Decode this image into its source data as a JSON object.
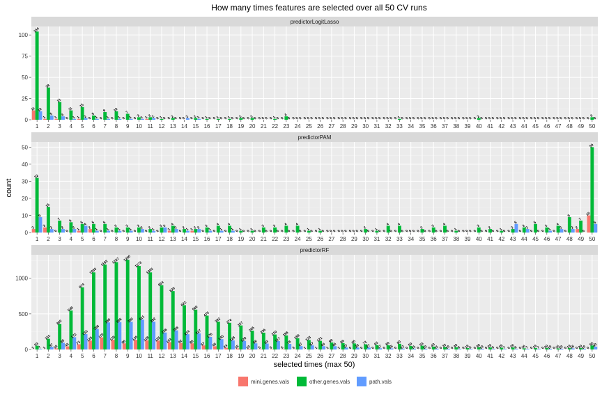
{
  "chart_data": {
    "type": "bar",
    "title": "How many times features are selected over all 50 CV runs",
    "xlabel": "selected times (max 50)",
    "ylabel": "count",
    "x": [
      1,
      2,
      3,
      4,
      5,
      6,
      7,
      8,
      9,
      10,
      11,
      12,
      13,
      14,
      15,
      16,
      17,
      18,
      19,
      20,
      21,
      22,
      23,
      24,
      25,
      26,
      27,
      28,
      29,
      30,
      31,
      32,
      33,
      34,
      35,
      36,
      37,
      38,
      39,
      40,
      41,
      42,
      43,
      44,
      45,
      46,
      47,
      48,
      49,
      50
    ],
    "legend_position": "bottom",
    "colors": {
      "mini.genes.vals": "#F8766D",
      "other.genes.vals": "#00BA38",
      "path.vals": "#619CFF"
    },
    "panels": [
      {
        "name": "predictorLogitLasso",
        "ylim": [
          0,
          110
        ],
        "yticks": [
          0,
          25,
          50,
          75,
          100
        ],
        "series": [
          {
            "name": "mini.genes.vals",
            "values": [
              11,
              1,
              1,
              0,
              1,
              0,
              0,
              0,
              0,
              0,
              1,
              0,
              0,
              0,
              0,
              0,
              0,
              0,
              0,
              0,
              0,
              0,
              0,
              0,
              0,
              0,
              0,
              0,
              0,
              0,
              0,
              0,
              0,
              0,
              0,
              0,
              0,
              0,
              0,
              0,
              0,
              0,
              0,
              0,
              0,
              0,
              0,
              0,
              0,
              0
            ]
          },
          {
            "name": "other.genes.vals",
            "values": [
              104,
              38,
              21,
              11,
              15,
              5,
              9,
              10,
              7,
              3,
              3,
              1,
              2,
              0,
              2,
              1,
              1,
              1,
              2,
              2,
              0,
              1,
              4,
              0,
              0,
              0,
              0,
              0,
              0,
              0,
              0,
              0,
              1,
              0,
              0,
              0,
              0,
              0,
              0,
              2,
              0,
              0,
              0,
              0,
              0,
              0,
              0,
              0,
              0,
              3
            ]
          },
          {
            "name": "path.vals",
            "values": [
              10,
              5,
              4,
              1,
              2,
              1,
              1,
              1,
              1,
              1,
              2,
              0,
              0,
              2,
              1,
              0,
              0,
              0,
              0,
              0,
              0,
              0,
              0,
              0,
              0,
              0,
              0,
              0,
              0,
              0,
              0,
              0,
              0,
              0,
              0,
              0,
              0,
              0,
              0,
              0,
              0,
              0,
              0,
              0,
              0,
              0,
              0,
              0,
              0,
              0
            ]
          }
        ]
      },
      {
        "name": "predictorPAM",
        "ylim": [
          0,
          53
        ],
        "yticks": [
          0,
          10,
          20,
          30,
          40,
          50
        ],
        "series": [
          {
            "name": "mini.genes.vals",
            "values": [
              2,
              3,
              0,
              0,
              1,
              2,
              0,
              0,
              0,
              0,
              0,
              0,
              1,
              0,
              1,
              0,
              0,
              0,
              0,
              0,
              0,
              0,
              0,
              0,
              0,
              0,
              0,
              0,
              0,
              0,
              0,
              0,
              0,
              0,
              0,
              0,
              0,
              0,
              0,
              0,
              0,
              0,
              0,
              0,
              0,
              0,
              0,
              0,
              2,
              10
            ]
          },
          {
            "name": "other.genes.vals",
            "values": [
              32,
              15,
              7,
              6,
              5,
              5,
              5,
              3,
              3,
              3,
              2,
              3,
              4,
              2,
              2,
              3,
              4,
              4,
              1,
              1,
              3,
              3,
              4,
              4,
              1,
              1,
              0,
              0,
              0,
              2,
              1,
              4,
              4,
              0,
              2,
              3,
              4,
              1,
              0,
              3,
              2,
              1,
              2,
              3,
              5,
              3,
              4,
              9,
              7,
              50
            ]
          },
          {
            "name": "path.vals",
            "values": [
              9,
              2,
              2,
              2,
              4,
              1,
              1,
              1,
              1,
              2,
              1,
              3,
              2,
              1,
              2,
              1,
              1,
              1,
              0,
              0,
              0,
              0,
              0,
              0,
              0,
              0,
              0,
              0,
              0,
              0,
              0,
              0,
              0,
              0,
              0,
              0,
              0,
              0,
              0,
              0,
              0,
              0,
              5,
              2,
              0,
              1,
              2,
              2,
              0,
              5
            ]
          }
        ]
      },
      {
        "name": "predictorRF",
        "ylim": [
          0,
          1330
        ],
        "yticks": [
          0,
          500,
          1000
        ],
        "series": [
          {
            "name": "mini.genes.vals",
            "values": [
              1,
              1,
              16,
              43,
              73,
              125,
              170,
              135,
              86,
              135,
              128,
              125,
              103,
              92,
              86,
              57,
              45,
              24,
              15,
              10,
              5,
              5,
              5,
              3,
              1,
              1,
              1,
              1,
              0,
              0,
              0,
              0,
              0,
              0,
              0,
              0,
              0,
              0,
              0,
              0,
              0,
              0,
              0,
              0,
              0,
              0,
              0,
              0,
              0,
              0
            ]
          },
          {
            "name": "other.genes.vals",
            "values": [
              53,
              151,
              360,
              548,
              874,
              1083,
              1193,
              1227,
              1260,
              1173,
              1083,
              904,
              820,
              622,
              560,
              475,
              392,
              374,
              337,
              265,
              236,
              210,
              198,
              158,
              133,
              121,
              99,
              89,
              85,
              73,
              63,
              60,
              80,
              50,
              53,
              40,
              33,
              30,
              19,
              30,
              28,
              25,
              28,
              16,
              19,
              20,
              15,
              19,
              20,
              56
            ]
          },
          {
            "name": "path.vals",
            "values": [
              7,
              37,
              95,
              172,
              215,
              288,
              380,
              386,
              390,
              421,
              392,
              238,
              268,
              214,
              227,
              176,
              145,
              128,
              120,
              86,
              83,
              117,
              78,
              47,
              57,
              46,
              46,
              27,
              28,
              27,
              17,
              15,
              12,
              11,
              10,
              11,
              10,
              8,
              8,
              10,
              8,
              7,
              8,
              7,
              7,
              10,
              10,
              15,
              10,
              40
            ]
          }
        ]
      }
    ]
  }
}
